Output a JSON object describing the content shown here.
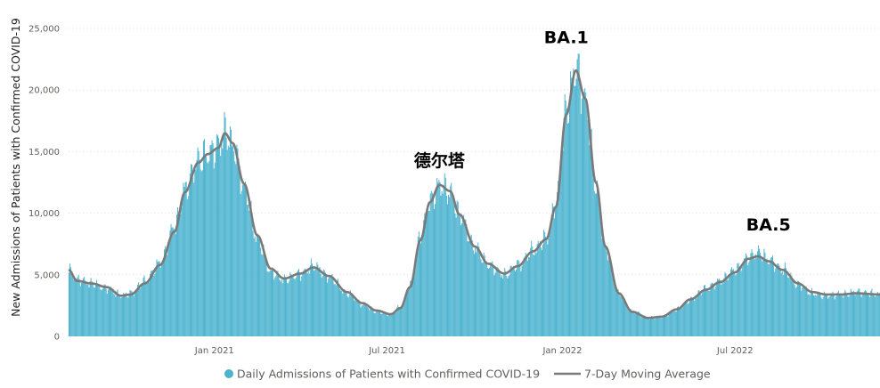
{
  "chart_data": {
    "type": "bar",
    "ylabel": "New Admissions of Patients with Confirmed COVID-19",
    "xlabel": "",
    "ylim": [
      0,
      25000
    ],
    "yticks": [
      0,
      5000,
      10000,
      15000,
      20000,
      25000
    ],
    "ytick_labels": [
      "0",
      "5,000",
      "10,000",
      "15,000",
      "20,000",
      "25,000"
    ],
    "x_range": [
      "2020-08-01",
      "2022-11-30"
    ],
    "xticks": [
      {
        "date": "2021-01-01",
        "label": "Jan 2021"
      },
      {
        "date": "2021-07-01",
        "label": "Jul 2021"
      },
      {
        "date": "2022-01-01",
        "label": "Jan 2022"
      },
      {
        "date": "2022-07-01",
        "label": "Jul 2022"
      }
    ],
    "grid": true,
    "legend_placement": "bottom",
    "colors": {
      "bars": "#4cb3cf",
      "moving_average": "#7a7a7a"
    },
    "series": [
      {
        "name": "Daily Admissions of Patients with Confirmed COVID-19",
        "kind": "bar",
        "daily": true,
        "anchors": [
          [
            "2020-08-01",
            5400
          ],
          [
            "2020-08-10",
            4600
          ],
          [
            "2020-08-25",
            4300
          ],
          [
            "2020-09-10",
            3900
          ],
          [
            "2020-09-25",
            3300
          ],
          [
            "2020-10-05",
            3500
          ],
          [
            "2020-10-20",
            4500
          ],
          [
            "2020-11-05",
            6000
          ],
          [
            "2020-11-20",
            9000
          ],
          [
            "2020-12-01",
            12000
          ],
          [
            "2020-12-15",
            14300
          ],
          [
            "2020-12-25",
            14800
          ],
          [
            "2021-01-05",
            15500
          ],
          [
            "2021-01-12",
            16600
          ],
          [
            "2021-01-20",
            15500
          ],
          [
            "2021-02-01",
            12000
          ],
          [
            "2021-02-15",
            7800
          ],
          [
            "2021-03-01",
            5200
          ],
          [
            "2021-03-15",
            4600
          ],
          [
            "2021-04-01",
            5100
          ],
          [
            "2021-04-15",
            5700
          ],
          [
            "2021-05-01",
            4800
          ],
          [
            "2021-05-20",
            3500
          ],
          [
            "2021-06-05",
            2600
          ],
          [
            "2021-06-20",
            2000
          ],
          [
            "2021-07-05",
            1800
          ],
          [
            "2021-07-15",
            2400
          ],
          [
            "2021-07-25",
            4200
          ],
          [
            "2021-08-05",
            8200
          ],
          [
            "2021-08-15",
            11000
          ],
          [
            "2021-08-25",
            12300
          ],
          [
            "2021-09-05",
            11700
          ],
          [
            "2021-09-15",
            9800
          ],
          [
            "2021-10-01",
            7200
          ],
          [
            "2021-10-15",
            5800
          ],
          [
            "2021-11-01",
            5000
          ],
          [
            "2021-11-15",
            5800
          ],
          [
            "2021-12-01",
            7000
          ],
          [
            "2021-12-15",
            8000
          ],
          [
            "2021-12-25",
            11000
          ],
          [
            "2022-01-05",
            18500
          ],
          [
            "2022-01-15",
            21800
          ],
          [
            "2022-01-25",
            19000
          ],
          [
            "2022-02-05",
            12000
          ],
          [
            "2022-02-15",
            7000
          ],
          [
            "2022-03-01",
            3400
          ],
          [
            "2022-03-15",
            2000
          ],
          [
            "2022-04-01",
            1500
          ],
          [
            "2022-04-15",
            1600
          ],
          [
            "2022-05-01",
            2200
          ],
          [
            "2022-05-15",
            3000
          ],
          [
            "2022-06-01",
            3900
          ],
          [
            "2022-06-15",
            4500
          ],
          [
            "2022-07-01",
            5400
          ],
          [
            "2022-07-15",
            6400
          ],
          [
            "2022-07-25",
            6800
          ],
          [
            "2022-08-05",
            6200
          ],
          [
            "2022-08-20",
            5400
          ],
          [
            "2022-09-05",
            4200
          ],
          [
            "2022-09-20",
            3500
          ],
          [
            "2022-10-05",
            3300
          ],
          [
            "2022-10-20",
            3400
          ],
          [
            "2022-11-05",
            3600
          ],
          [
            "2022-11-30",
            3400
          ]
        ]
      },
      {
        "name": "7-Day Moving Average",
        "kind": "line",
        "points": [
          [
            "2020-08-01",
            5400
          ],
          [
            "2020-08-10",
            4500
          ],
          [
            "2020-08-25",
            4300
          ],
          [
            "2020-09-10",
            4000
          ],
          [
            "2020-09-25",
            3300
          ],
          [
            "2020-10-05",
            3400
          ],
          [
            "2020-10-20",
            4300
          ],
          [
            "2020-11-05",
            5800
          ],
          [
            "2020-11-20",
            8500
          ],
          [
            "2020-12-01",
            11700
          ],
          [
            "2020-12-15",
            14100
          ],
          [
            "2020-12-25",
            14800
          ],
          [
            "2021-01-05",
            15300
          ],
          [
            "2021-01-12",
            16500
          ],
          [
            "2021-01-20",
            15700
          ],
          [
            "2021-02-01",
            12400
          ],
          [
            "2021-02-15",
            8200
          ],
          [
            "2021-03-01",
            5500
          ],
          [
            "2021-03-15",
            4700
          ],
          [
            "2021-04-01",
            5100
          ],
          [
            "2021-04-15",
            5600
          ],
          [
            "2021-05-01",
            4900
          ],
          [
            "2021-05-20",
            3600
          ],
          [
            "2021-06-05",
            2700
          ],
          [
            "2021-06-20",
            2100
          ],
          [
            "2021-07-05",
            1800
          ],
          [
            "2021-07-15",
            2300
          ],
          [
            "2021-07-25",
            4000
          ],
          [
            "2021-08-05",
            7800
          ],
          [
            "2021-08-15",
            10900
          ],
          [
            "2021-08-25",
            12300
          ],
          [
            "2021-09-05",
            11800
          ],
          [
            "2021-09-15",
            9900
          ],
          [
            "2021-10-01",
            7300
          ],
          [
            "2021-10-15",
            5900
          ],
          [
            "2021-11-01",
            5100
          ],
          [
            "2021-11-15",
            5700
          ],
          [
            "2021-12-01",
            6900
          ],
          [
            "2021-12-15",
            7900
          ],
          [
            "2021-12-25",
            10500
          ],
          [
            "2022-01-05",
            18000
          ],
          [
            "2022-01-15",
            21600
          ],
          [
            "2022-01-25",
            19300
          ],
          [
            "2022-02-05",
            12500
          ],
          [
            "2022-02-15",
            7300
          ],
          [
            "2022-03-01",
            3500
          ],
          [
            "2022-03-15",
            2000
          ],
          [
            "2022-04-01",
            1500
          ],
          [
            "2022-04-15",
            1600
          ],
          [
            "2022-05-01",
            2200
          ],
          [
            "2022-05-15",
            3000
          ],
          [
            "2022-06-01",
            3800
          ],
          [
            "2022-06-15",
            4400
          ],
          [
            "2022-07-01",
            5200
          ],
          [
            "2022-07-15",
            6300
          ],
          [
            "2022-07-25",
            6500
          ],
          [
            "2022-08-05",
            6100
          ],
          [
            "2022-08-20",
            5400
          ],
          [
            "2022-09-05",
            4300
          ],
          [
            "2022-09-20",
            3600
          ],
          [
            "2022-10-05",
            3400
          ],
          [
            "2022-10-20",
            3400
          ],
          [
            "2022-11-05",
            3500
          ],
          [
            "2022-11-30",
            3400
          ]
        ]
      }
    ],
    "annotations": [
      {
        "text": "德尔塔",
        "date": "2021-08-25",
        "value": 13800
      },
      {
        "text": "BA.1",
        "date": "2022-01-05",
        "value": 23800
      },
      {
        "text": "BA.5",
        "date": "2022-08-05",
        "value": 8600
      }
    ]
  }
}
